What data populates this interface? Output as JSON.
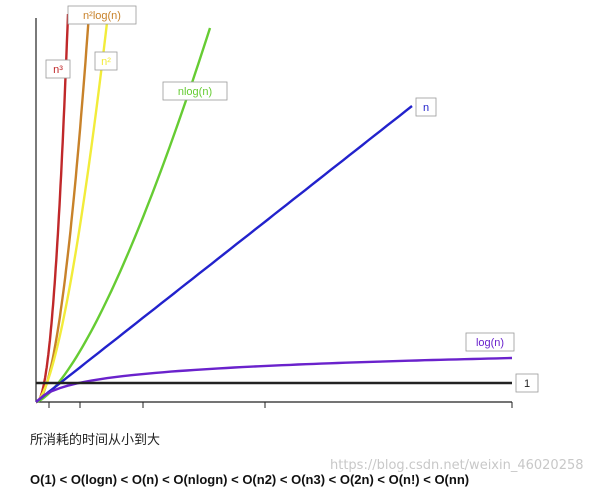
{
  "chart_data": {
    "type": "line",
    "title": "",
    "xlabel": "",
    "ylabel": "",
    "series": [
      {
        "name": "n³",
        "color": "#c0282a"
      },
      {
        "name": "n²log(n)",
        "color": "#c8822a"
      },
      {
        "name": "n²",
        "color": "#f2ec3a"
      },
      {
        "name": "nlog(n)",
        "color": "#66cc33"
      },
      {
        "name": "n",
        "color": "#2222cc"
      },
      {
        "name": "log(n)",
        "color": "#6a22cc"
      },
      {
        "name": "1",
        "color": "#222222"
      }
    ],
    "grid": false,
    "legend": "labels next to curves"
  },
  "caption": "所消耗的时间从小到大",
  "ordering": "O(1) < O(logn) < O(n) < O(nlogn) < O(n2) < O(n3) < O(2n) < O(n!) < O(nn)",
  "watermark": "https://blog.csdn.net/weixin_46020258"
}
